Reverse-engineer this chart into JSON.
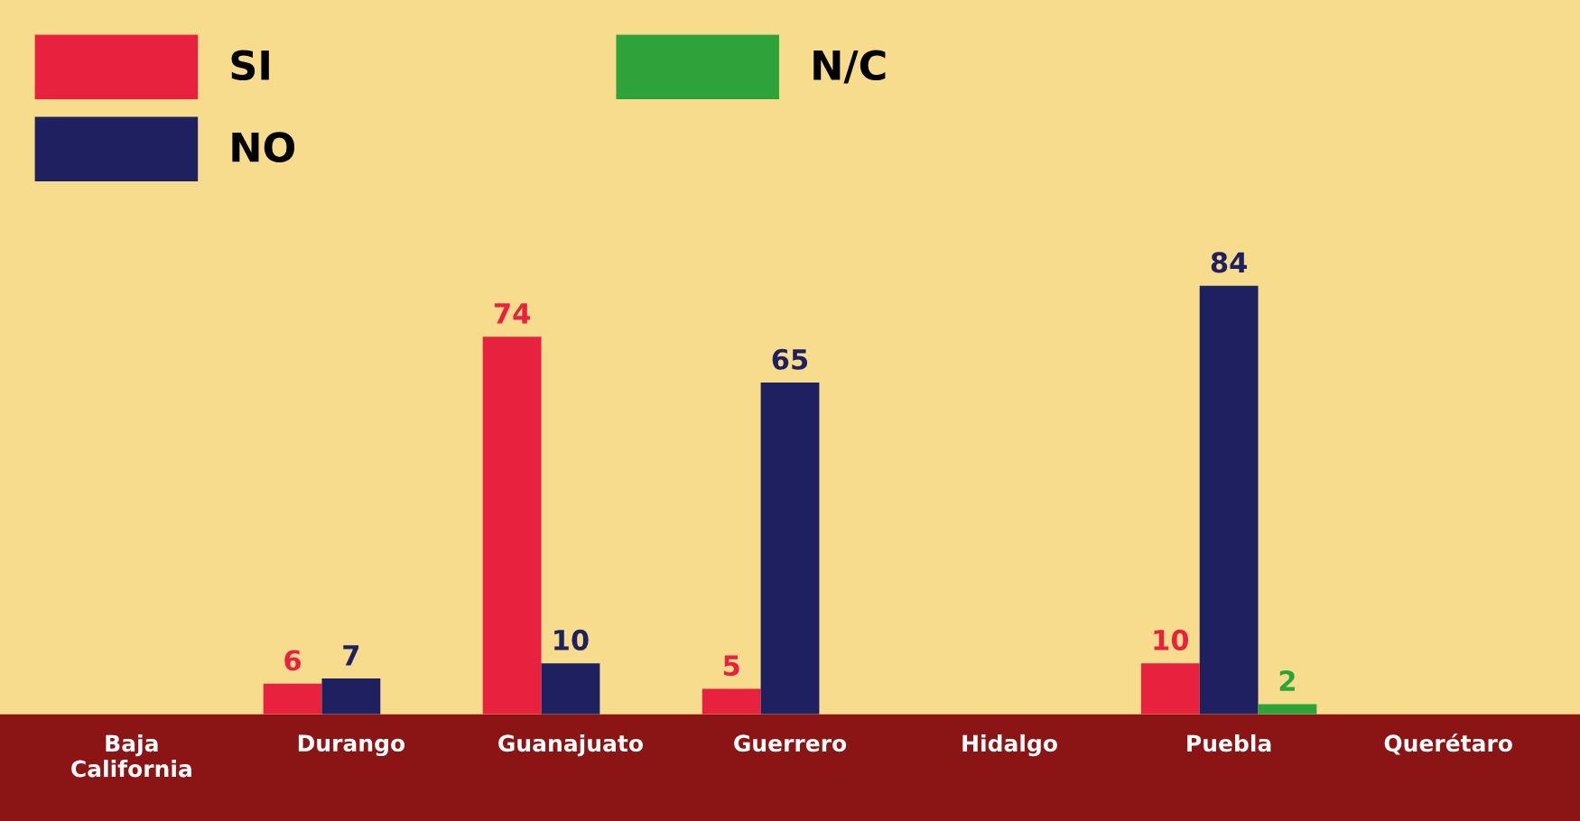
{
  "chart_data": {
    "type": "bar",
    "categories": [
      "Baja\nCalifornia",
      "Durango",
      "Guanajuato",
      "Guerrero",
      "Hidalgo",
      "Puebla",
      "Querétaro"
    ],
    "series": [
      {
        "name": "SI",
        "color": "#e8213f",
        "values": [
          null,
          6,
          74,
          5,
          null,
          10,
          null
        ]
      },
      {
        "name": "NO",
        "color": "#1f2060",
        "values": [
          null,
          7,
          10,
          65,
          null,
          84,
          null
        ]
      },
      {
        "name": "N/C",
        "color": "#2ea33a",
        "values": [
          null,
          null,
          null,
          null,
          null,
          2,
          null
        ]
      }
    ],
    "ylim": [
      0,
      140
    ],
    "data_labels": true,
    "legend": "top left",
    "grid": false
  }
}
